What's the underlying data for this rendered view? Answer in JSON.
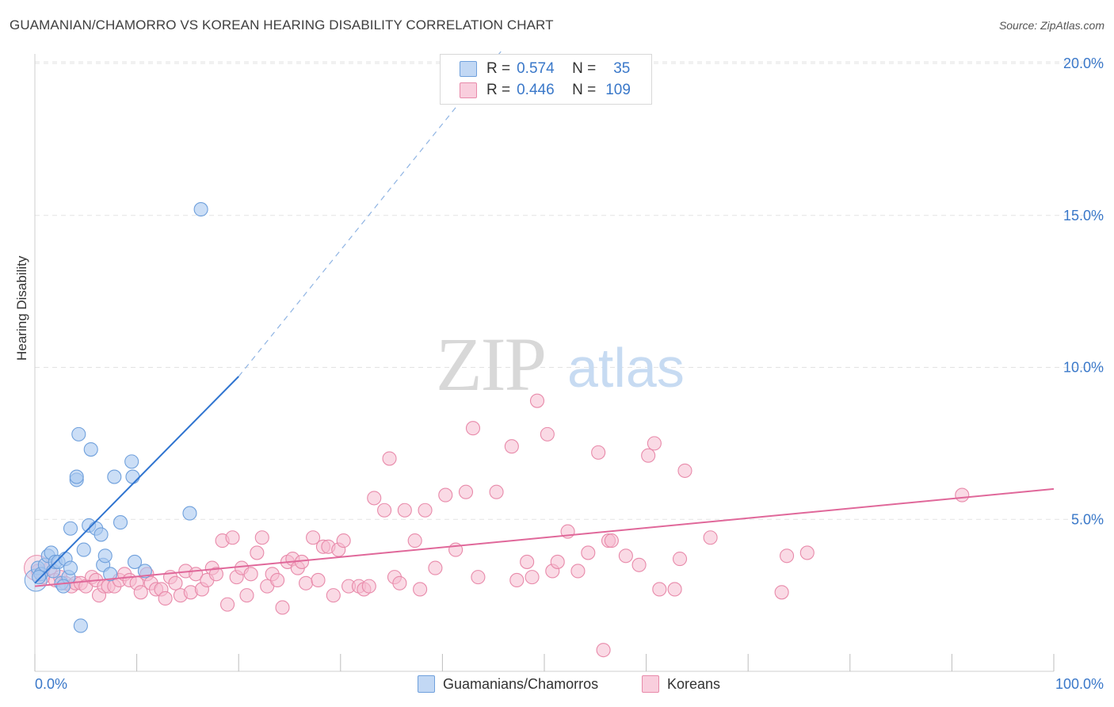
{
  "title": "GUAMANIAN/CHAMORRO VS KOREAN HEARING DISABILITY CORRELATION CHART",
  "source": "Source: ZipAtlas.com",
  "watermark": {
    "zip": "ZIP",
    "atlas": "atlas"
  },
  "colors": {
    "blue_fill": "#a9c8f0",
    "blue_stroke": "#6fa0dc",
    "blue_line": "#2f74d0",
    "pink_fill": "#f6bcd0",
    "pink_stroke": "#e88aaa",
    "pink_line": "#e0689a",
    "axis_label": "#3a78c9",
    "grid": "#e3e3e3"
  },
  "legend": {
    "rows": [
      {
        "r_label": "R =",
        "r_value": "0.574",
        "n_label": "N =",
        "n_value": "35",
        "color": "#a9c8f0"
      },
      {
        "r_label": "R =",
        "r_value": "0.446",
        "n_label": "N =",
        "n_value": "109",
        "color": "#f6bcd0"
      }
    ]
  },
  "bottom_legend": [
    {
      "label": "Guamanians/Chamorros",
      "color": "#a9c8f0"
    },
    {
      "label": "Koreans",
      "color": "#f6bcd0"
    }
  ],
  "chart_data": {
    "type": "scatter",
    "title": "GUAMANIAN/CHAMORRO VS KOREAN HEARING DISABILITY CORRELATION CHART",
    "xlabel": "",
    "ylabel": "Hearing Disability",
    "xlim": [
      0,
      100
    ],
    "ylim": [
      0,
      20.5
    ],
    "x_tick_labels": [
      "0.0%",
      "100.0%"
    ],
    "y_ticks": [
      5,
      10,
      15,
      20
    ],
    "y_tick_labels": [
      "5.0%",
      "10.0%",
      "15.0%",
      "20.0%"
    ],
    "grid": true,
    "legend_position": "top-center",
    "series": [
      {
        "name": "Guamanians/Chamorros",
        "color": "#a9c8f0",
        "points": [
          [
            0.3,
            3.4
          ],
          [
            0.6,
            3.2
          ],
          [
            1,
            3.5
          ],
          [
            1.3,
            3.8
          ],
          [
            1.6,
            3.9
          ],
          [
            1.8,
            3.3
          ],
          [
            2,
            3.6
          ],
          [
            2.3,
            3.6
          ],
          [
            2.6,
            2.9
          ],
          [
            3,
            3.7
          ],
          [
            3.3,
            3.1
          ],
          [
            3.5,
            3.4
          ],
          [
            3.5,
            4.7
          ],
          [
            4.1,
            6.3
          ],
          [
            4.1,
            6.4
          ],
          [
            4.3,
            7.8
          ],
          [
            4.5,
            1.5
          ],
          [
            4.8,
            4.0
          ],
          [
            5.3,
            4.8
          ],
          [
            5.5,
            7.3
          ],
          [
            6,
            4.7
          ],
          [
            6.5,
            4.5
          ],
          [
            6.7,
            3.5
          ],
          [
            6.9,
            3.8
          ],
          [
            7.4,
            3.2
          ],
          [
            7.8,
            6.4
          ],
          [
            8.4,
            4.9
          ],
          [
            9.5,
            6.9
          ],
          [
            9.6,
            6.4
          ],
          [
            9.8,
            3.6
          ],
          [
            10.8,
            3.3
          ],
          [
            15.2,
            5.2
          ],
          [
            16.3,
            15.2
          ],
          [
            0.4,
            3.1
          ],
          [
            2.8,
            2.8
          ]
        ],
        "trend": {
          "x": [
            0,
            20
          ],
          "y": [
            2.9,
            9.7
          ],
          "dashed_extension_to": [
            46,
            20.5
          ]
        }
      },
      {
        "name": "Koreans",
        "color": "#f6bcd0",
        "points": [
          [
            0.3,
            3.3
          ],
          [
            0.8,
            3.1
          ],
          [
            1.5,
            3.4
          ],
          [
            2,
            3.0
          ],
          [
            2.5,
            3.1
          ],
          [
            3,
            2.9
          ],
          [
            3.6,
            2.8
          ],
          [
            4,
            2.9
          ],
          [
            4.5,
            2.9
          ],
          [
            5,
            2.8
          ],
          [
            5.6,
            3.1
          ],
          [
            6,
            3.0
          ],
          [
            6.3,
            2.5
          ],
          [
            6.8,
            2.8
          ],
          [
            7.2,
            2.8
          ],
          [
            7.8,
            2.8
          ],
          [
            8.3,
            3.0
          ],
          [
            8.8,
            3.2
          ],
          [
            9.3,
            3.0
          ],
          [
            10,
            2.9
          ],
          [
            10.4,
            2.6
          ],
          [
            11,
            3.2
          ],
          [
            11.4,
            2.9
          ],
          [
            11.9,
            2.7
          ],
          [
            12.4,
            2.7
          ],
          [
            12.8,
            2.4
          ],
          [
            13.3,
            3.1
          ],
          [
            13.8,
            2.9
          ],
          [
            14.3,
            2.5
          ],
          [
            14.8,
            3.3
          ],
          [
            15.3,
            2.6
          ],
          [
            15.8,
            3.2
          ],
          [
            16.4,
            2.7
          ],
          [
            16.9,
            3.0
          ],
          [
            17.4,
            3.4
          ],
          [
            17.8,
            3.2
          ],
          [
            18.4,
            4.3
          ],
          [
            18.9,
            2.2
          ],
          [
            19.4,
            4.4
          ],
          [
            19.8,
            3.1
          ],
          [
            20.3,
            3.4
          ],
          [
            20.8,
            2.5
          ],
          [
            21.2,
            3.2
          ],
          [
            21.8,
            3.9
          ],
          [
            22.3,
            4.4
          ],
          [
            22.8,
            2.8
          ],
          [
            23.3,
            3.2
          ],
          [
            23.8,
            3.0
          ],
          [
            24.3,
            2.1
          ],
          [
            24.8,
            3.6
          ],
          [
            25.3,
            3.7
          ],
          [
            25.8,
            3.4
          ],
          [
            26.2,
            3.6
          ],
          [
            26.6,
            2.9
          ],
          [
            27.3,
            4.4
          ],
          [
            27.8,
            3.0
          ],
          [
            28.3,
            4.1
          ],
          [
            28.8,
            4.1
          ],
          [
            29.3,
            2.5
          ],
          [
            29.8,
            4.0
          ],
          [
            30.3,
            4.3
          ],
          [
            30.8,
            2.8
          ],
          [
            31.8,
            2.8
          ],
          [
            32.3,
            2.7
          ],
          [
            32.8,
            2.8
          ],
          [
            33.3,
            5.7
          ],
          [
            34.3,
            5.3
          ],
          [
            34.8,
            7.0
          ],
          [
            35.3,
            3.1
          ],
          [
            35.8,
            2.9
          ],
          [
            36.3,
            5.3
          ],
          [
            37.3,
            4.3
          ],
          [
            37.8,
            2.7
          ],
          [
            38.3,
            5.3
          ],
          [
            39.3,
            3.4
          ],
          [
            40.3,
            5.8
          ],
          [
            41.3,
            4.0
          ],
          [
            42.3,
            5.9
          ],
          [
            43,
            8.0
          ],
          [
            43.5,
            3.1
          ],
          [
            45.3,
            5.9
          ],
          [
            46.8,
            7.4
          ],
          [
            47.3,
            3.0
          ],
          [
            48.3,
            3.6
          ],
          [
            48.8,
            3.1
          ],
          [
            49.3,
            8.9
          ],
          [
            50.3,
            7.8
          ],
          [
            50.8,
            3.3
          ],
          [
            51.3,
            3.6
          ],
          [
            52.3,
            4.6
          ],
          [
            53.3,
            3.3
          ],
          [
            54.3,
            3.9
          ],
          [
            55.3,
            7.2
          ],
          [
            55.8,
            0.7
          ],
          [
            56.3,
            4.3
          ],
          [
            56.6,
            4.3
          ],
          [
            58,
            3.8
          ],
          [
            59.3,
            3.5
          ],
          [
            60.2,
            7.1
          ],
          [
            60.8,
            7.5
          ],
          [
            61.3,
            2.7
          ],
          [
            62.8,
            2.7
          ],
          [
            63.3,
            3.7
          ],
          [
            63.8,
            6.6
          ],
          [
            66.3,
            4.4
          ],
          [
            73.3,
            2.6
          ],
          [
            73.8,
            3.8
          ],
          [
            75.8,
            3.9
          ],
          [
            91,
            5.8
          ]
        ],
        "trend": {
          "x": [
            0,
            100
          ],
          "y": [
            2.8,
            6.0
          ]
        }
      }
    ]
  }
}
